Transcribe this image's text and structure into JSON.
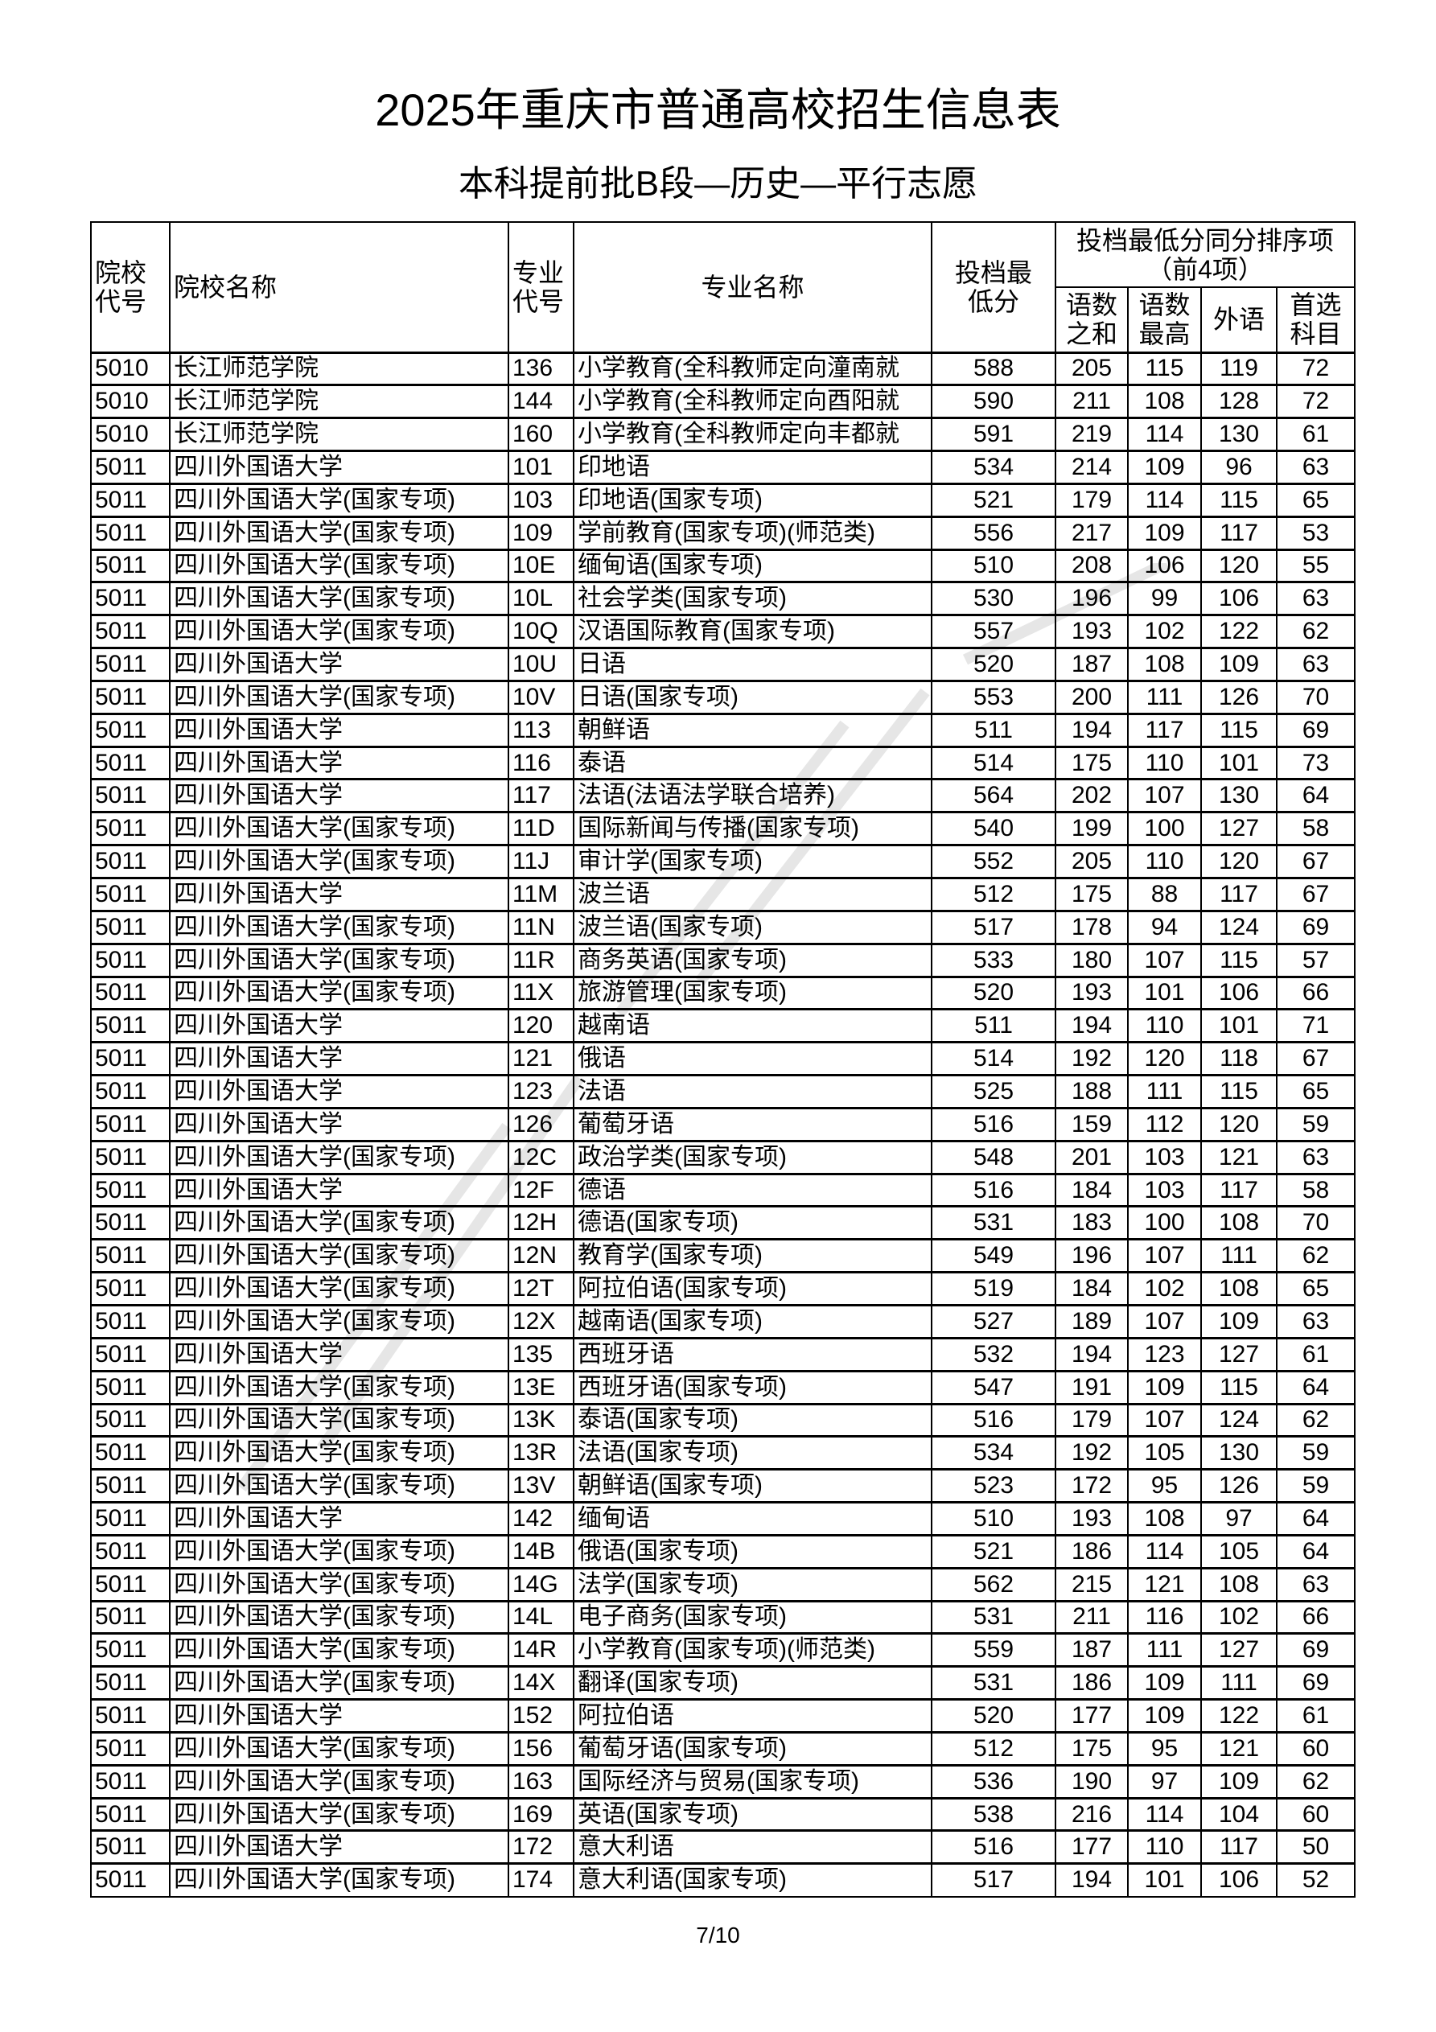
{
  "title": "2025年重庆市普通高校招生信息表",
  "subtitle": "本科提前批B段—历史—平行志愿",
  "header": {
    "school_code": "院校代号",
    "school_name": "院校名称",
    "major_code": "专业代号",
    "major_name": "专业名称",
    "min_score": "投档最低分",
    "tiebreak_group": "投档最低分同分排序项（前4项）",
    "tiebreak_sum": "语数之和",
    "tiebreak_max": "语数最高",
    "tiebreak_foreign": "外语",
    "tiebreak_first": "首选科目"
  },
  "rows": [
    [
      "5010",
      "长江师范学院",
      "136",
      "小学教育(全科教师定向潼南就",
      "588",
      "205",
      "115",
      "119",
      "72"
    ],
    [
      "5010",
      "长江师范学院",
      "144",
      "小学教育(全科教师定向酉阳就",
      "590",
      "211",
      "108",
      "128",
      "72"
    ],
    [
      "5010",
      "长江师范学院",
      "160",
      "小学教育(全科教师定向丰都就",
      "591",
      "219",
      "114",
      "130",
      "61"
    ],
    [
      "5011",
      "四川外国语大学",
      "101",
      "印地语",
      "534",
      "214",
      "109",
      "96",
      "63"
    ],
    [
      "5011",
      "四川外国语大学(国家专项)",
      "103",
      "印地语(国家专项)",
      "521",
      "179",
      "114",
      "115",
      "65"
    ],
    [
      "5011",
      "四川外国语大学(国家专项)",
      "109",
      "学前教育(国家专项)(师范类)",
      "556",
      "217",
      "109",
      "117",
      "53"
    ],
    [
      "5011",
      "四川外国语大学(国家专项)",
      "10E",
      "缅甸语(国家专项)",
      "510",
      "208",
      "106",
      "120",
      "55"
    ],
    [
      "5011",
      "四川外国语大学(国家专项)",
      "10L",
      "社会学类(国家专项)",
      "530",
      "196",
      "99",
      "106",
      "63"
    ],
    [
      "5011",
      "四川外国语大学(国家专项)",
      "10Q",
      "汉语国际教育(国家专项)",
      "557",
      "193",
      "102",
      "122",
      "62"
    ],
    [
      "5011",
      "四川外国语大学",
      "10U",
      "日语",
      "520",
      "187",
      "108",
      "109",
      "63"
    ],
    [
      "5011",
      "四川外国语大学(国家专项)",
      "10V",
      "日语(国家专项)",
      "553",
      "200",
      "111",
      "126",
      "70"
    ],
    [
      "5011",
      "四川外国语大学",
      "113",
      "朝鲜语",
      "511",
      "194",
      "117",
      "115",
      "69"
    ],
    [
      "5011",
      "四川外国语大学",
      "116",
      "泰语",
      "514",
      "175",
      "110",
      "101",
      "73"
    ],
    [
      "5011",
      "四川外国语大学",
      "117",
      "法语(法语法学联合培养)",
      "564",
      "202",
      "107",
      "130",
      "64"
    ],
    [
      "5011",
      "四川外国语大学(国家专项)",
      "11D",
      "国际新闻与传播(国家专项)",
      "540",
      "199",
      "100",
      "127",
      "58"
    ],
    [
      "5011",
      "四川外国语大学(国家专项)",
      "11J",
      "审计学(国家专项)",
      "552",
      "205",
      "110",
      "120",
      "67"
    ],
    [
      "5011",
      "四川外国语大学",
      "11M",
      "波兰语",
      "512",
      "175",
      "88",
      "117",
      "67"
    ],
    [
      "5011",
      "四川外国语大学(国家专项)",
      "11N",
      "波兰语(国家专项)",
      "517",
      "178",
      "94",
      "124",
      "69"
    ],
    [
      "5011",
      "四川外国语大学(国家专项)",
      "11R",
      "商务英语(国家专项)",
      "533",
      "180",
      "107",
      "115",
      "57"
    ],
    [
      "5011",
      "四川外国语大学(国家专项)",
      "11X",
      "旅游管理(国家专项)",
      "520",
      "193",
      "101",
      "106",
      "66"
    ],
    [
      "5011",
      "四川外国语大学",
      "120",
      "越南语",
      "511",
      "194",
      "110",
      "101",
      "71"
    ],
    [
      "5011",
      "四川外国语大学",
      "121",
      "俄语",
      "514",
      "192",
      "120",
      "118",
      "67"
    ],
    [
      "5011",
      "四川外国语大学",
      "123",
      "法语",
      "525",
      "188",
      "111",
      "115",
      "65"
    ],
    [
      "5011",
      "四川外国语大学",
      "126",
      "葡萄牙语",
      "516",
      "159",
      "112",
      "120",
      "59"
    ],
    [
      "5011",
      "四川外国语大学(国家专项)",
      "12C",
      "政治学类(国家专项)",
      "548",
      "201",
      "103",
      "121",
      "63"
    ],
    [
      "5011",
      "四川外国语大学",
      "12F",
      "德语",
      "516",
      "184",
      "103",
      "117",
      "58"
    ],
    [
      "5011",
      "四川外国语大学(国家专项)",
      "12H",
      "德语(国家专项)",
      "531",
      "183",
      "100",
      "108",
      "70"
    ],
    [
      "5011",
      "四川外国语大学(国家专项)",
      "12N",
      "教育学(国家专项)",
      "549",
      "196",
      "107",
      "111",
      "62"
    ],
    [
      "5011",
      "四川外国语大学(国家专项)",
      "12T",
      "阿拉伯语(国家专项)",
      "519",
      "184",
      "102",
      "108",
      "65"
    ],
    [
      "5011",
      "四川外国语大学(国家专项)",
      "12X",
      "越南语(国家专项)",
      "527",
      "189",
      "107",
      "109",
      "63"
    ],
    [
      "5011",
      "四川外国语大学",
      "135",
      "西班牙语",
      "532",
      "194",
      "123",
      "127",
      "61"
    ],
    [
      "5011",
      "四川外国语大学(国家专项)",
      "13E",
      "西班牙语(国家专项)",
      "547",
      "191",
      "109",
      "115",
      "64"
    ],
    [
      "5011",
      "四川外国语大学(国家专项)",
      "13K",
      "泰语(国家专项)",
      "516",
      "179",
      "107",
      "124",
      "62"
    ],
    [
      "5011",
      "四川外国语大学(国家专项)",
      "13R",
      "法语(国家专项)",
      "534",
      "192",
      "105",
      "130",
      "59"
    ],
    [
      "5011",
      "四川外国语大学(国家专项)",
      "13V",
      "朝鲜语(国家专项)",
      "523",
      "172",
      "95",
      "126",
      "59"
    ],
    [
      "5011",
      "四川外国语大学",
      "142",
      "缅甸语",
      "510",
      "193",
      "108",
      "97",
      "64"
    ],
    [
      "5011",
      "四川外国语大学(国家专项)",
      "14B",
      "俄语(国家专项)",
      "521",
      "186",
      "114",
      "105",
      "64"
    ],
    [
      "5011",
      "四川外国语大学(国家专项)",
      "14G",
      "法学(国家专项)",
      "562",
      "215",
      "121",
      "108",
      "63"
    ],
    [
      "5011",
      "四川外国语大学(国家专项)",
      "14L",
      "电子商务(国家专项)",
      "531",
      "211",
      "116",
      "102",
      "66"
    ],
    [
      "5011",
      "四川外国语大学(国家专项)",
      "14R",
      "小学教育(国家专项)(师范类)",
      "559",
      "187",
      "111",
      "127",
      "69"
    ],
    [
      "5011",
      "四川外国语大学(国家专项)",
      "14X",
      "翻译(国家专项)",
      "531",
      "186",
      "109",
      "111",
      "69"
    ],
    [
      "5011",
      "四川外国语大学",
      "152",
      "阿拉伯语",
      "520",
      "177",
      "109",
      "122",
      "61"
    ],
    [
      "5011",
      "四川外国语大学(国家专项)",
      "156",
      "葡萄牙语(国家专项)",
      "512",
      "175",
      "95",
      "121",
      "60"
    ],
    [
      "5011",
      "四川外国语大学(国家专项)",
      "163",
      "国际经济与贸易(国家专项)",
      "536",
      "190",
      "97",
      "109",
      "62"
    ],
    [
      "5011",
      "四川外国语大学(国家专项)",
      "169",
      "英语(国家专项)",
      "538",
      "216",
      "114",
      "104",
      "60"
    ],
    [
      "5011",
      "四川外国语大学",
      "172",
      "意大利语",
      "516",
      "177",
      "110",
      "117",
      "50"
    ],
    [
      "5011",
      "四川外国语大学(国家专项)",
      "174",
      "意大利语(国家专项)",
      "517",
      "194",
      "101",
      "106",
      "52"
    ]
  ],
  "page_number": "7/10"
}
